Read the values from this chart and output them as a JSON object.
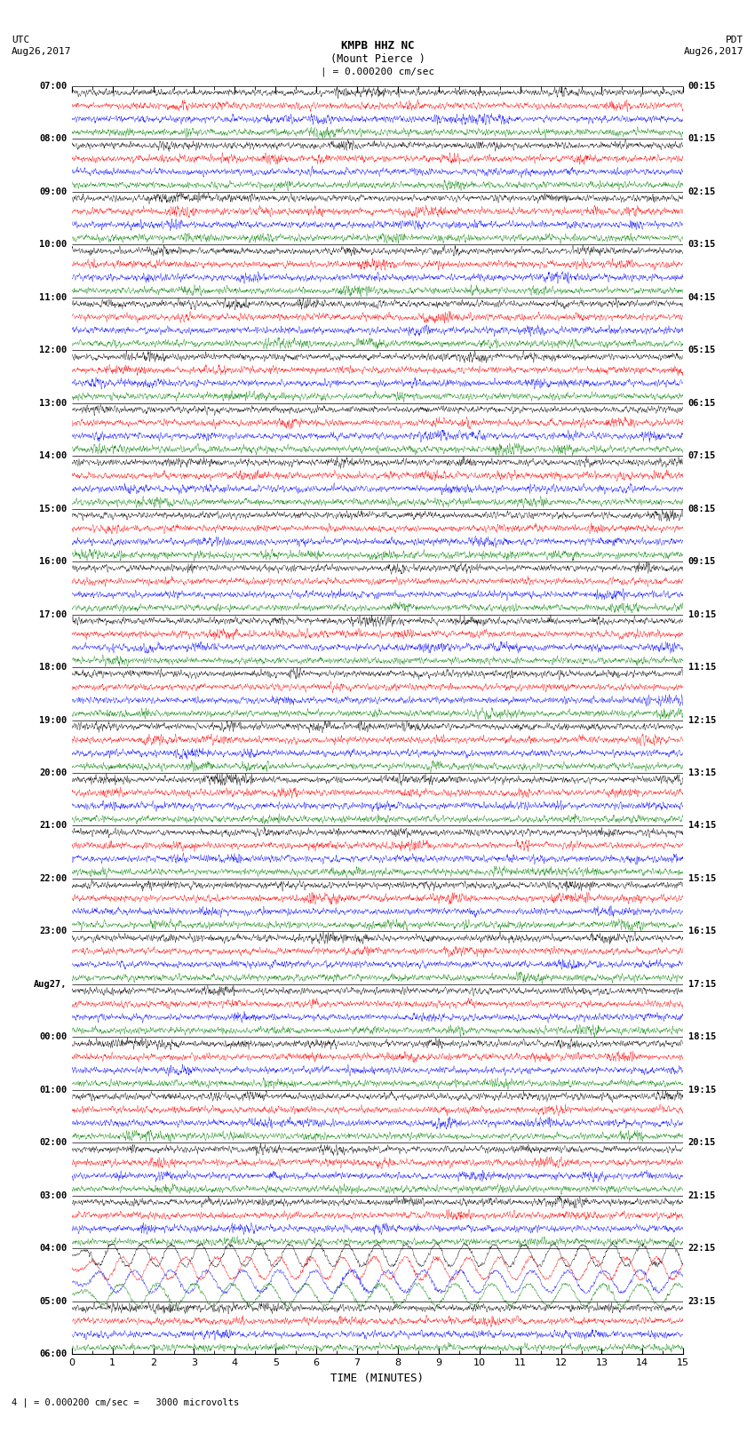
{
  "title_line1": "KMPB HHZ NC",
  "title_line2": "(Mount Pierce )",
  "scale_label": "| = 0.000200 cm/sec",
  "footer_label": "4 | = 0.000200 cm/sec =   3000 microvolts",
  "xlabel": "TIME (MINUTES)",
  "bg_color": "#ffffff",
  "trace_colors": [
    "black",
    "red",
    "blue",
    "green"
  ],
  "minutes_per_row": 15,
  "left_times": [
    "07:00",
    "08:00",
    "09:00",
    "10:00",
    "11:00",
    "12:00",
    "13:00",
    "14:00",
    "15:00",
    "16:00",
    "17:00",
    "18:00",
    "19:00",
    "20:00",
    "21:00",
    "22:00",
    "23:00",
    "Aug27,",
    "00:00",
    "01:00",
    "02:00",
    "03:00",
    "04:00",
    "05:00",
    "06:00"
  ],
  "right_times": [
    "00:15",
    "01:15",
    "02:15",
    "03:15",
    "04:15",
    "05:15",
    "06:15",
    "07:15",
    "08:15",
    "09:15",
    "10:15",
    "11:15",
    "12:15",
    "13:15",
    "14:15",
    "15:15",
    "16:15",
    "17:15",
    "18:15",
    "19:15",
    "20:15",
    "21:15",
    "22:15",
    "23:15"
  ],
  "n_time_blocks": 24,
  "traces_per_block": 4,
  "special_block_earthquake": 22,
  "fig_width": 8.5,
  "fig_height": 16.13,
  "dpi": 100
}
